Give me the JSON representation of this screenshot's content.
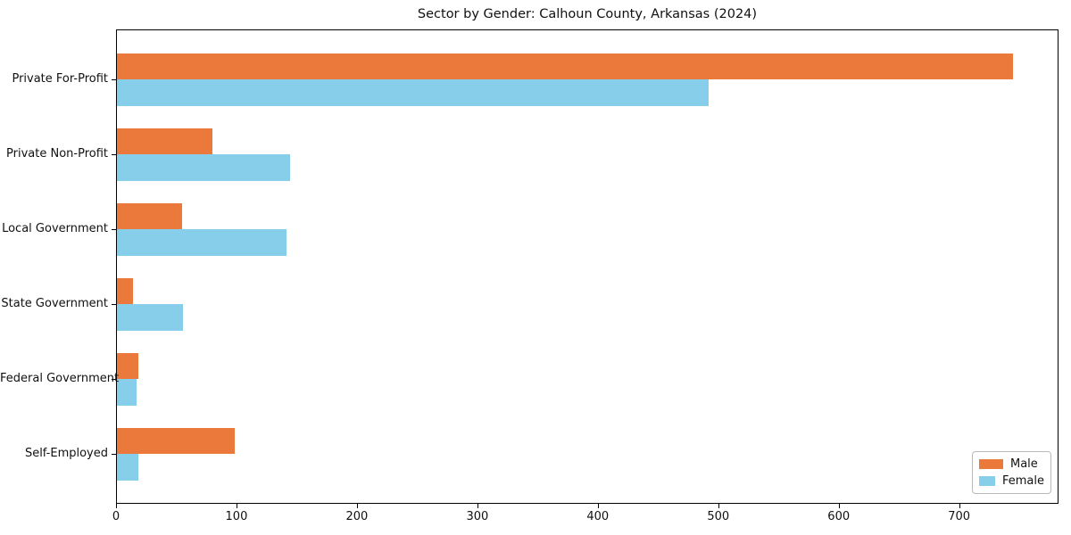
{
  "figure": {
    "title": "Sector by Gender: Calhoun County, Arkansas (2024)"
  },
  "chart_data": {
    "type": "bar",
    "orientation": "horizontal",
    "title": "Sector by Gender: Calhoun County, Arkansas (2024)",
    "categories": [
      "Private For-Profit",
      "Private Non-Profit",
      "Local Government",
      "State Government",
      "Federal Government",
      "Self-Employed"
    ],
    "series": [
      {
        "name": "Male",
        "color": "#EA793B",
        "values": [
          744,
          79,
          54,
          13,
          18,
          98
        ]
      },
      {
        "name": "Female",
        "color": "#87CEEB",
        "values": [
          491,
          144,
          141,
          55,
          16,
          18
        ]
      }
    ],
    "xlabel": "",
    "ylabel": "",
    "xlim": [
      0,
      781
    ],
    "x_ticks": [
      0,
      100,
      200,
      300,
      400,
      500,
      600,
      700
    ],
    "grid": false,
    "legend": {
      "position": "lower right",
      "entries": [
        "Male",
        "Female"
      ]
    }
  }
}
